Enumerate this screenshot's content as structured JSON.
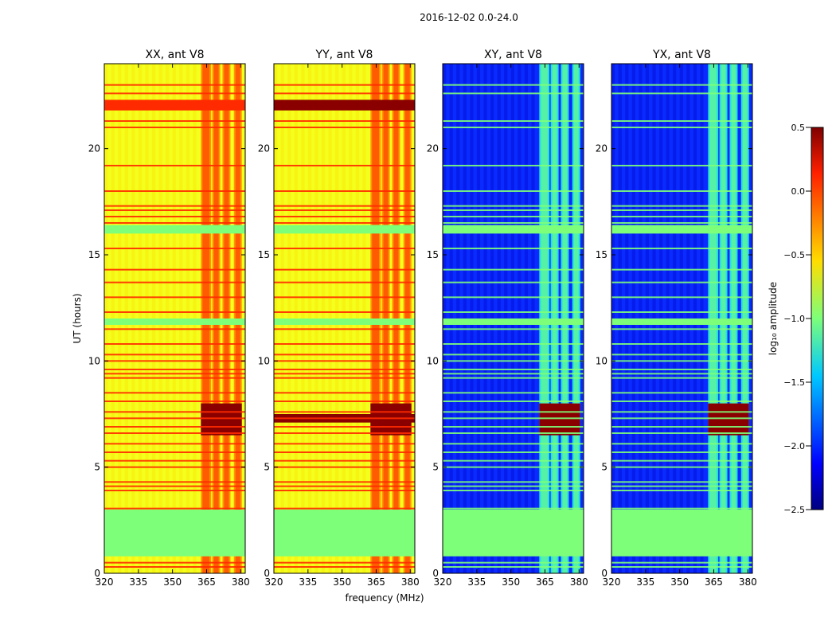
{
  "suptitle": "2016-12-02 0.0-24.0",
  "shared_xlabel": "frequency (MHz)",
  "shared_ylabel": "UT (hours)",
  "colors": {
    "xx_base": "#f4ff1c",
    "yx_base": "#0a2bff",
    "flag_green": "#7dff7a",
    "deep_red": "#8a0000",
    "red": "#ff2a00",
    "orange": "#ff8c00",
    "cyan": "#27ffd6"
  },
  "chart_data": [
    {
      "type": "heatmap",
      "title": "XX, ant V8",
      "base": "yellow",
      "xlim": [
        320,
        382
      ],
      "ylim": [
        0,
        24
      ],
      "xticks": [
        320,
        335,
        350,
        365,
        380
      ],
      "yticks": [
        0,
        5,
        10,
        15,
        20
      ],
      "zlim": [
        -2.5,
        0.5
      ]
    },
    {
      "type": "heatmap",
      "title": "YY, ant V8",
      "base": "yellow",
      "xlim": [
        320,
        382
      ],
      "ylim": [
        0,
        24
      ],
      "xticks": [
        320,
        335,
        350,
        365,
        380
      ],
      "yticks": [
        0,
        5,
        10,
        15,
        20
      ],
      "zlim": [
        -2.5,
        0.5
      ]
    },
    {
      "type": "heatmap",
      "title": "XY, ant V8",
      "base": "blue",
      "xlim": [
        320,
        382
      ],
      "ylim": [
        0,
        24
      ],
      "xticks": [
        320,
        335,
        350,
        365,
        380
      ],
      "yticks": [
        0,
        5,
        10,
        15,
        20
      ],
      "zlim": [
        -2.5,
        0.5
      ]
    },
    {
      "type": "heatmap",
      "title": "YX, ant V8",
      "base": "blue",
      "xlim": [
        320,
        382
      ],
      "ylim": [
        0,
        24
      ],
      "xticks": [
        320,
        335,
        350,
        365,
        380
      ],
      "yticks": [
        0,
        5,
        10,
        15,
        20
      ],
      "zlim": [
        -2.5,
        0.5
      ]
    }
  ],
  "colorbar": {
    "label": "log₁₀ amplitude",
    "range": [
      -2.5,
      0.5
    ],
    "ticks": [
      "0.5",
      "0.0",
      "−0.5",
      "−1.0",
      "−1.5",
      "−2.0",
      "−2.5"
    ],
    "tick_values": [
      0.5,
      0.0,
      -0.5,
      -1.0,
      -1.5,
      -2.0,
      -2.5
    ]
  },
  "features": {
    "flagged_hours": [
      [
        0.8,
        3.0
      ],
      [
        11.7,
        12.0
      ],
      [
        16.0,
        16.4
      ]
    ],
    "red_lines_hours": [
      0.3,
      0.5,
      3.05,
      3.9,
      4.1,
      4.3,
      5.0,
      5.3,
      5.7,
      6.1,
      6.6,
      6.9,
      7.3,
      7.6,
      8.1,
      8.5,
      9.2,
      9.4,
      9.6,
      10.0,
      10.3,
      10.8,
      11.5,
      12.3,
      13.0,
      13.7,
      14.3,
      15.3,
      16.5,
      16.8,
      17.1,
      17.3,
      18.0,
      19.2,
      21.0,
      21.3,
      22.6,
      23.0
    ],
    "hot_channels_mhz": [
      [
        362.5,
        367
      ],
      [
        367.5,
        371
      ],
      [
        372,
        375.5
      ],
      [
        377,
        380.5
      ]
    ],
    "storm_band_hours": [
      6.5,
      8.0
    ],
    "xx_red_band_hours": [
      21.8,
      22.3
    ],
    "yy_red_band_hours": [
      21.8,
      22.3
    ],
    "yy_storm_band_hours": [
      7.1,
      7.5
    ]
  }
}
